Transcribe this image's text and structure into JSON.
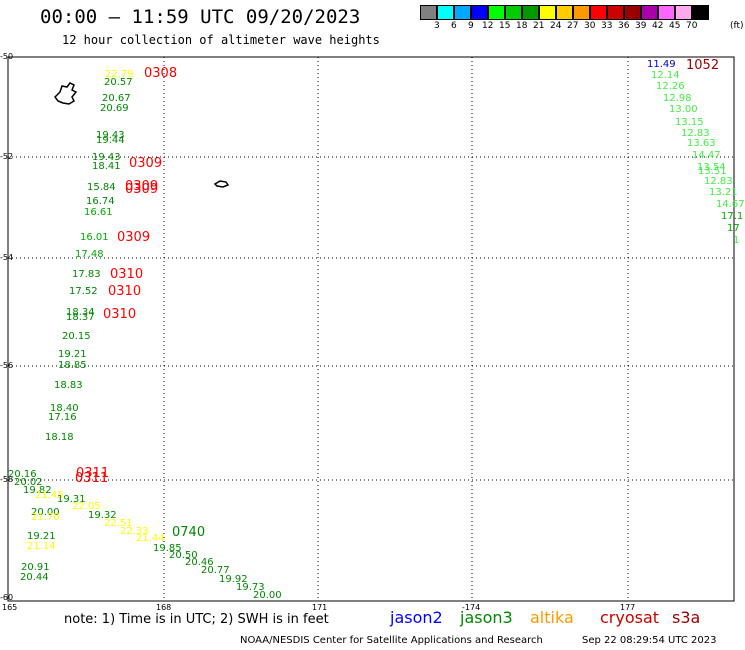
{
  "header": {
    "title": "00:00 – 11:59 UTC 09/20/2023",
    "subtitle": "12 hour collection of altimeter wave heights"
  },
  "legend": {
    "unit": "(ft)",
    "ticks": [
      "3",
      "6",
      "9",
      "12",
      "15",
      "18",
      "21",
      "24",
      "27",
      "30",
      "33",
      "36",
      "39",
      "42",
      "45",
      "70"
    ],
    "colors": [
      "#808080",
      "#00ffff",
      "#00a8ff",
      "#0000ff",
      "#00ff00",
      "#00cc00",
      "#009900",
      "#ffff00",
      "#ffcc00",
      "#ff9900",
      "#ff0000",
      "#cc0000",
      "#990000",
      "#aa00aa",
      "#ff66ff",
      "#ffaaee",
      "#000000"
    ]
  },
  "axes": {
    "lat_labels": [
      "-50",
      "-52",
      "-54",
      "-56",
      "-58",
      "-60"
    ],
    "lon_labels": [
      "165",
      "168",
      "171",
      "-174",
      "177"
    ]
  },
  "map": {
    "pass_ids": [
      {
        "text": "0308",
        "color": "#ff0000"
      },
      {
        "text": "0309",
        "color": "#ff0000"
      },
      {
        "text": "0309",
        "color": "#ff0000"
      },
      {
        "text": "0309",
        "color": "#ff0000"
      },
      {
        "text": "0309",
        "color": "#ff0000"
      },
      {
        "text": "0310",
        "color": "#ff0000"
      },
      {
        "text": "0310",
        "color": "#ff0000"
      },
      {
        "text": "0310",
        "color": "#ff0000"
      },
      {
        "text": "0311",
        "color": "#ff0000"
      },
      {
        "text": "0311",
        "color": "#ff0000"
      },
      {
        "text": "0740",
        "color": "#008800"
      },
      {
        "text": "1052",
        "color": "#990000"
      }
    ],
    "readouts": [
      {
        "text": "22.79",
        "color": "#ffff00"
      },
      {
        "text": "20.57",
        "color": "#008800"
      },
      {
        "text": "20.67",
        "color": "#008800"
      },
      {
        "text": "20.69",
        "color": "#008800"
      },
      {
        "text": "19.43",
        "color": "#008800"
      },
      {
        "text": "19.44",
        "color": "#008800"
      },
      {
        "text": "19.43",
        "color": "#008800"
      },
      {
        "text": "18.41",
        "color": "#008800"
      },
      {
        "text": "15.84",
        "color": "#008800"
      },
      {
        "text": "16.74",
        "color": "#008800"
      },
      {
        "text": "16.61",
        "color": "#00aa00"
      },
      {
        "text": "16.01",
        "color": "#00aa00"
      },
      {
        "text": "17.48",
        "color": "#00aa00"
      },
      {
        "text": "17.83",
        "color": "#008800"
      },
      {
        "text": "17.52",
        "color": "#008800"
      },
      {
        "text": "18.34",
        "color": "#008800"
      },
      {
        "text": "18.37",
        "color": "#008800"
      },
      {
        "text": "20.15",
        "color": "#008800"
      },
      {
        "text": "19.21",
        "color": "#008800"
      },
      {
        "text": "18.85",
        "color": "#008800"
      },
      {
        "text": "18.83",
        "color": "#008800"
      },
      {
        "text": "18.40",
        "color": "#008800"
      },
      {
        "text": "17.16",
        "color": "#008800"
      },
      {
        "text": "18.18",
        "color": "#008800"
      },
      {
        "text": "20.16",
        "color": "#008800"
      },
      {
        "text": "20.02",
        "color": "#008800"
      },
      {
        "text": "19.82",
        "color": "#008800"
      },
      {
        "text": "21.45",
        "color": "#ffff00"
      },
      {
        "text": "19.31",
        "color": "#008800"
      },
      {
        "text": "22.05",
        "color": "#ffff00"
      },
      {
        "text": "20.00",
        "color": "#008800"
      },
      {
        "text": "21.70",
        "color": "#ffff00"
      },
      {
        "text": "19.32",
        "color": "#008800"
      },
      {
        "text": "22.51",
        "color": "#ffff00"
      },
      {
        "text": "22.33",
        "color": "#ffff00"
      },
      {
        "text": "21.44",
        "color": "#ffff00"
      },
      {
        "text": "19.21",
        "color": "#008800"
      },
      {
        "text": "21.14",
        "color": "#ffff00"
      },
      {
        "text": "19.85",
        "color": "#008800"
      },
      {
        "text": "20.50",
        "color": "#008800"
      },
      {
        "text": "20.46",
        "color": "#008800"
      },
      {
        "text": "20.77",
        "color": "#008800"
      },
      {
        "text": "19.92",
        "color": "#008800"
      },
      {
        "text": "19.73",
        "color": "#008800"
      },
      {
        "text": "20.00",
        "color": "#008800"
      },
      {
        "text": "20.91",
        "color": "#008800"
      },
      {
        "text": "20.44",
        "color": "#008800"
      },
      {
        "text": "11.49",
        "color": "#0000cc"
      },
      {
        "text": "12.14",
        "color": "#44ee44"
      },
      {
        "text": "12.26",
        "color": "#44ee44"
      },
      {
        "text": "12.98",
        "color": "#44ee44"
      },
      {
        "text": "13.00",
        "color": "#44ee44"
      },
      {
        "text": "13.15",
        "color": "#44ee44"
      },
      {
        "text": "12.83",
        "color": "#44ee44"
      },
      {
        "text": "13.63",
        "color": "#44ee44"
      },
      {
        "text": "14.47",
        "color": "#44ee44"
      },
      {
        "text": "13.54",
        "color": "#44ee44"
      },
      {
        "text": "13.51",
        "color": "#44ee44"
      },
      {
        "text": "12.83",
        "color": "#44ee44"
      },
      {
        "text": "13.21",
        "color": "#44ee44"
      },
      {
        "text": "14.67",
        "color": "#44ee44"
      },
      {
        "text": "17.1",
        "color": "#00aa00"
      },
      {
        "text": "17",
        "color": "#00aa00"
      },
      {
        "text": "1",
        "color": "#44ee44"
      }
    ]
  },
  "footer": {
    "note": "note:  1) Time is in UTC;  2) SWH is in feet",
    "satellites": [
      {
        "name": "jason2",
        "color": "#0000ff"
      },
      {
        "name": "jason3",
        "color": "#008800"
      },
      {
        "name": "altika",
        "color": "#ff9900"
      },
      {
        "name": "cryosat",
        "color": "#cc0000"
      },
      {
        "name": "s3a",
        "color": "#990000"
      }
    ],
    "credit": "NOAA/NESDIS Center for Satellite Applications and Research",
    "timestamp": "Sep 22 08:29:54 UTC 2023"
  }
}
